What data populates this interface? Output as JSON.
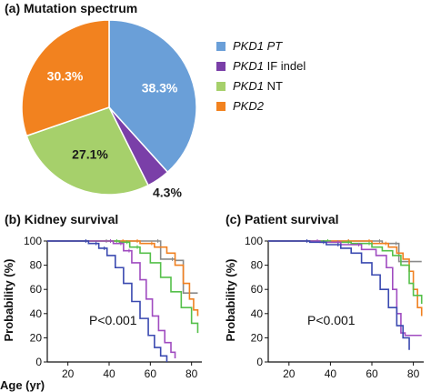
{
  "panel_a": {
    "title": "(a) Mutation spectrum"
  },
  "panel_b": {
    "title": "(b) Kidney survival",
    "pvalue": "P<0.001"
  },
  "panel_c": {
    "title": "(c) Patient survival",
    "pvalue": "P<0.001"
  },
  "shared": {
    "x_axis_label": "Age (yr)",
    "y_axis_label": "Probability (%)"
  },
  "colors": {
    "PKD1 PT": "#6a9fd8",
    "PKD1 IF indel": "#7a3fa8",
    "PKD1 NT": "#a6d06b",
    "PKD2": "#f2821f",
    "survival_blue": "#3a49b0",
    "survival_purple": "#a04cc0",
    "survival_green": "#55c04a",
    "survival_orange": "#f08020",
    "survival_gray": "#8a8a8a"
  },
  "chart_data": [
    {
      "type": "pie",
      "title": "(a) Mutation spectrum",
      "legend_position": "right",
      "slices": [
        {
          "legend_italic": "PKD1",
          "legend_rest": " PT",
          "legend_all_italic": true,
          "value": 38.3,
          "label": "38.3%",
          "color_key": "PKD1 PT"
        },
        {
          "legend_italic": "PKD1",
          "legend_rest": " IF indel",
          "legend_all_italic": false,
          "value": 4.3,
          "label": "4.3%",
          "color_key": "PKD1 IF indel"
        },
        {
          "legend_italic": "PKD1",
          "legend_rest": " NT",
          "legend_all_italic": false,
          "value": 27.1,
          "label": "27.1%",
          "color_key": "PKD1 NT"
        },
        {
          "legend_italic": "PKD2",
          "legend_rest": "",
          "legend_all_italic": true,
          "value": 30.3,
          "label": "30.3%",
          "color_key": "PKD2"
        }
      ]
    },
    {
      "type": "line",
      "title": "(b) Kidney survival",
      "xlabel": "Age (yr)",
      "ylabel": "Probability (%)",
      "xlim": [
        10,
        85
      ],
      "ylim": [
        0,
        100
      ],
      "xticks": [
        20,
        40,
        60,
        80
      ],
      "yticks": [
        0,
        20,
        40,
        60,
        80,
        100
      ],
      "annotation": "P<0.001",
      "series": [
        {
          "color_key": "survival_gray",
          "x": [
            10,
            40,
            65,
            72,
            76,
            76,
            83
          ],
          "y": [
            100,
            100,
            85,
            84,
            84,
            57,
            57
          ]
        },
        {
          "color_key": "survival_orange",
          "x": [
            10,
            48,
            55,
            62,
            68,
            72,
            76,
            79,
            81,
            83
          ],
          "y": [
            100,
            100,
            98,
            95,
            90,
            80,
            65,
            52,
            43,
            38
          ]
        },
        {
          "color_key": "survival_green",
          "x": [
            10,
            45,
            50,
            55,
            60,
            65,
            70,
            75,
            80,
            83
          ],
          "y": [
            100,
            99,
            95,
            90,
            82,
            70,
            58,
            45,
            32,
            24
          ]
        },
        {
          "color_key": "survival_purple",
          "x": [
            10,
            42,
            47,
            51,
            55,
            58,
            61,
            64,
            67,
            70,
            72
          ],
          "y": [
            100,
            98,
            92,
            82,
            68,
            52,
            38,
            26,
            16,
            8,
            3
          ]
        },
        {
          "color_key": "survival_blue",
          "x": [
            10,
            30,
            35,
            39,
            43,
            47,
            51,
            55,
            59,
            62,
            65,
            68
          ],
          "y": [
            100,
            98,
            94,
            88,
            78,
            65,
            50,
            36,
            22,
            12,
            5,
            0
          ]
        }
      ]
    },
    {
      "type": "line",
      "title": "(c) Patient survival",
      "xlabel": "Age (yr)",
      "ylabel": "Probability (%)",
      "xlim": [
        10,
        85
      ],
      "ylim": [
        0,
        100
      ],
      "xticks": [
        20,
        40,
        60,
        80
      ],
      "yticks": [
        0,
        20,
        40,
        60,
        80,
        100
      ],
      "annotation": "P<0.001",
      "series": [
        {
          "color_key": "survival_gray",
          "x": [
            10,
            50,
            65,
            73,
            73,
            84
          ],
          "y": [
            100,
            100,
            98,
            97,
            83,
            83
          ]
        },
        {
          "color_key": "survival_orange",
          "x": [
            10,
            50,
            60,
            68,
            72,
            75,
            78,
            80,
            82,
            84
          ],
          "y": [
            100,
            100,
            98,
            95,
            90,
            85,
            75,
            60,
            45,
            38
          ]
        },
        {
          "color_key": "survival_green",
          "x": [
            10,
            40,
            50,
            60,
            65,
            70,
            74,
            78,
            80,
            84
          ],
          "y": [
            100,
            99,
            98,
            95,
            92,
            88,
            80,
            65,
            55,
            48
          ]
        },
        {
          "color_key": "survival_purple",
          "x": [
            10,
            35,
            45,
            55,
            62,
            67,
            70,
            72,
            74,
            76,
            84
          ],
          "y": [
            100,
            99,
            97,
            93,
            88,
            78,
            60,
            40,
            24,
            22,
            22
          ]
        },
        {
          "color_key": "survival_blue",
          "x": [
            10,
            30,
            38,
            45,
            50,
            55,
            60,
            64,
            68,
            72,
            75,
            78
          ],
          "y": [
            100,
            99,
            97,
            94,
            90,
            82,
            72,
            60,
            45,
            30,
            20,
            10
          ]
        }
      ]
    }
  ]
}
